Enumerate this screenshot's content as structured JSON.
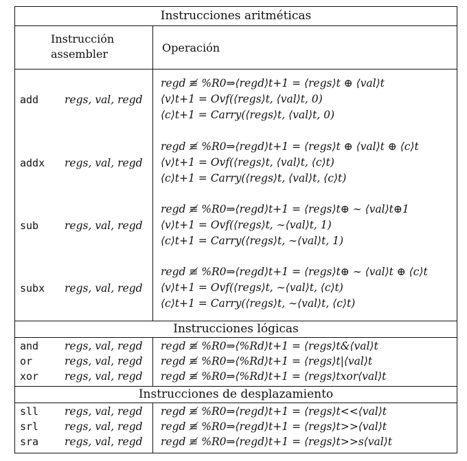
{
  "sections": {
    "arith": "Instrucciones aritméticas",
    "logic": "Instrucciones lógicas",
    "shift": "Instrucciones de desplazamiento"
  },
  "header": {
    "instr_line1": "Instrucción",
    "instr_line2": "assembler",
    "operation": "Operación"
  },
  "arith_rows": [
    {
      "mnemonic": "add",
      "operands": "regs, val, regd",
      "lines": [
        "regd ≢ %R0⇒⟨regd⟩t+1 = ⟨regs⟩t ⊕ ⟨val⟩t",
        "⟨v⟩t+1 = Ovf(⟨regs⟩t, ⟨val⟩t, 0)",
        "⟨c⟩t+1 = Carry(⟨regs⟩t, ⟨val⟩t, 0)"
      ]
    },
    {
      "mnemonic": "addx",
      "operands": "regs, val, regd",
      "lines": [
        "regd ≢ %R0⇒⟨regd⟩t+1 = ⟨regs⟩t ⊕ ⟨val⟩t ⊕ ⟨c⟩t",
        "⟨v⟩t+1 = Ovf(⟨regs⟩t, ⟨val⟩t, ⟨c⟩t)",
        "⟨c⟩t+1 = Carry(⟨regs⟩t, ⟨val⟩t, ⟨c⟩t)"
      ]
    },
    {
      "mnemonic": "sub",
      "operands": "regs, val, regd",
      "lines": [
        "regd ≢ %R0⇒⟨regd⟩t+1 = ⟨regs⟩t⊕ ∼ ⟨val⟩t⊕1",
        "⟨v⟩t+1 = Ovf(⟨regs⟩t, ∼⟨val⟩t, 1)",
        "⟨c⟩t+1 = Carry(⟨regs⟩t, ∼⟨val⟩t, 1)"
      ]
    },
    {
      "mnemonic": "subx",
      "operands": "regs, val, regd",
      "lines": [
        "regd ≢ %R0⇒⟨regd⟩t+1 = ⟨regs⟩t⊕ ∼ ⟨val⟩t ⊕ ⟨c⟩t",
        "⟨v⟩t+1 = Ovf(⟨regs⟩t, ∼⟨val⟩t, ⟨c⟩t)",
        "⟨c⟩t+1 = Carry(⟨regs⟩t, ∼⟨val⟩t, ⟨c⟩t)"
      ]
    }
  ],
  "logic_rows": [
    {
      "mnemonic": "and",
      "operands": "regs, val, regd",
      "line": "regd ≢ %R0⇒⟨%Rd⟩t+1 = ⟨regs⟩t&⟨val⟩t"
    },
    {
      "mnemonic": "or",
      "operands": "regs, val, regd",
      "line": "regd ≢ %R0⇒⟨%Rd⟩t+1 = ⟨regs⟩t|⟨val⟩t"
    },
    {
      "mnemonic": "xor",
      "operands": "regs, val, regd",
      "line": "regd ≢ %R0⇒⟨%Rd⟩t+1 = ⟨regs⟩txor⟨val⟩t"
    }
  ],
  "shift_rows": [
    {
      "mnemonic": "sll",
      "operands": "regs, val, regd",
      "line": "regd ≢ %R0⇒⟨regd⟩t+1 = ⟨regs⟩t<<⟨val⟩t"
    },
    {
      "mnemonic": "srl",
      "operands": "regs, val, regd",
      "line": "regd ≢ %R0⇒⟨regd⟩t+1 = ⟨regs⟩t>>⟨val⟩t"
    },
    {
      "mnemonic": "sra",
      "operands": "regs, val, regd",
      "line": "regd ≢ %R0⇒⟨regd⟩t+1 = ⟨regs⟩t>>s⟨val⟩t"
    }
  ]
}
